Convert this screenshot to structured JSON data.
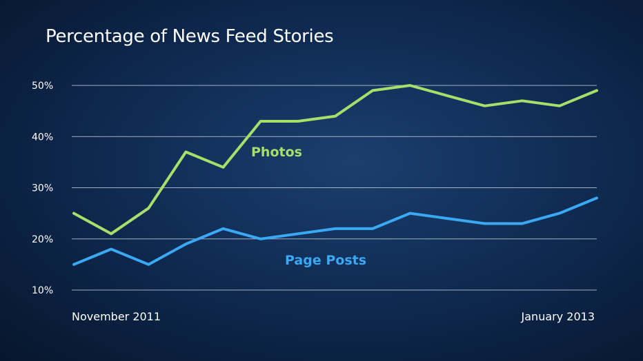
{
  "chart_data": {
    "type": "line",
    "title": "Percentage of News Feed Stories",
    "xlabel": "",
    "ylabel": "",
    "x_start_label": "November 2011",
    "x_end_label": "January 2013",
    "yticks": [
      "10%",
      "20%",
      "30%",
      "40%",
      "50%"
    ],
    "ytick_values": [
      10,
      20,
      30,
      40,
      50
    ],
    "ylim": [
      10,
      50
    ],
    "grid": true,
    "series": [
      {
        "name": "Photos",
        "color": "#a6e06a",
        "values": [
          25,
          21,
          26,
          37,
          34,
          43,
          43,
          44,
          49,
          50,
          48,
          46,
          47,
          46,
          49
        ]
      },
      {
        "name": "Page Posts",
        "color": "#3aa8f2",
        "values": [
          15,
          18,
          15,
          19,
          22,
          20,
          21,
          22,
          22,
          25,
          24,
          23,
          23,
          25,
          28
        ]
      }
    ]
  }
}
